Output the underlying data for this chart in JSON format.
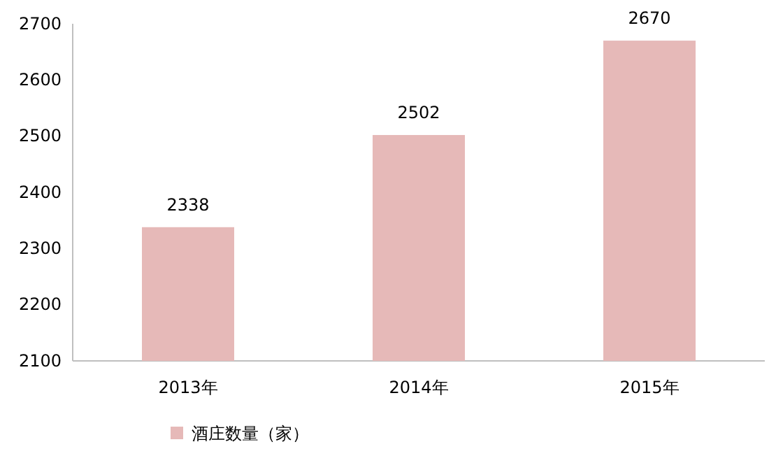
{
  "chart_data": {
    "type": "bar",
    "categories": [
      "2013年",
      "2014年",
      "2015年"
    ],
    "series": [
      {
        "name": "酒庄数量（家）",
        "color": "#e6b9b8",
        "values": [
          2338,
          2502,
          2670
        ]
      }
    ],
    "ylim": [
      2100,
      2700
    ],
    "yticks": [
      2100,
      2200,
      2300,
      2400,
      2500,
      2600,
      2700
    ],
    "data_labels": true,
    "legend": "bottom",
    "grid": false
  }
}
